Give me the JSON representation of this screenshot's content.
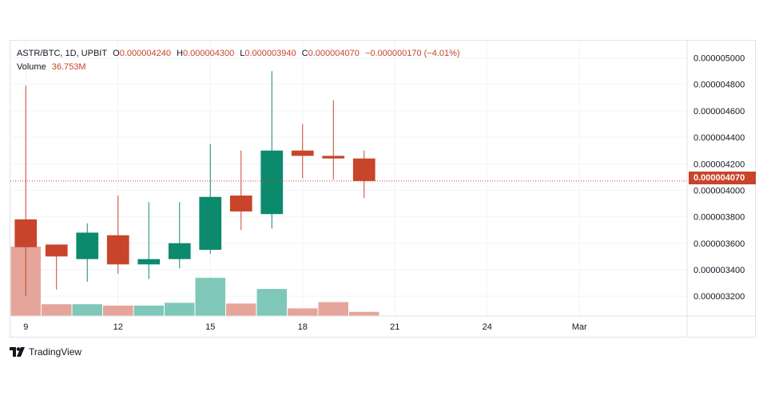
{
  "header": {
    "symbol_line": "ASTR/BTC, 1D, UPBIT",
    "open_key": "O",
    "open_value": "0.000004240",
    "high_key": "H",
    "high_value": "0.000004300",
    "low_key": "L",
    "low_value": "0.000003940",
    "close_key": "C",
    "close_value": "0.000004070",
    "change": "−0.000000170 (−4.01%)",
    "volume_label": "Volume",
    "volume_value": "36.753M"
  },
  "branding": {
    "logo_text": "TradingView",
    "logo_icon": "tradingview-logo-icon"
  },
  "colors": {
    "up": "#26a69a",
    "up_body": "#0c8a6e",
    "down": "#c8442b",
    "up_vol": "#7fc8b9",
    "down_vol": "#e6a59a",
    "grid": "#f0f3fa"
  },
  "chart_data": {
    "type": "candlestick",
    "title": "ASTR/BTC",
    "ylim": [
      3.05e-06,
      5.13e-06
    ],
    "xlim": [
      8.5,
      30.5
    ],
    "y_ticks": [
      {
        "value": 3.2e-06,
        "label": "0.000003200"
      },
      {
        "value": 3.4e-06,
        "label": "0.000003400"
      },
      {
        "value": 3.6e-06,
        "label": "0.000003600"
      },
      {
        "value": 3.8e-06,
        "label": "0.000003800"
      },
      {
        "value": 4e-06,
        "label": "0.000004000"
      },
      {
        "value": 4.2e-06,
        "label": "0.000004200"
      },
      {
        "value": 4.4e-06,
        "label": "0.000004400"
      },
      {
        "value": 4.6e-06,
        "label": "0.000004600"
      },
      {
        "value": 4.8e-06,
        "label": "0.000004800"
      },
      {
        "value": 5e-06,
        "label": "0.000005000"
      }
    ],
    "x_ticks": [
      {
        "value": 9,
        "label": "9"
      },
      {
        "value": 12,
        "label": "12"
      },
      {
        "value": 15,
        "label": "15"
      },
      {
        "value": 18,
        "label": "18"
      },
      {
        "value": 21,
        "label": "21"
      },
      {
        "value": 24,
        "label": "24"
      },
      {
        "value": 27,
        "label": "Mar"
      }
    ],
    "last_price": {
      "value": 4.07e-06,
      "label": "0.000004070"
    },
    "candles": [
      {
        "day": 9,
        "open": 3.78e-06,
        "high": 4.79e-06,
        "low": 3.2e-06,
        "close": 3.57e-06,
        "volume": 100
      },
      {
        "day": 10,
        "open": 3.59e-06,
        "high": 3.59e-06,
        "low": 3.25e-06,
        "close": 3.5e-06,
        "volume": 17
      },
      {
        "day": 11,
        "open": 3.48e-06,
        "high": 3.75e-06,
        "low": 3.31e-06,
        "close": 3.68e-06,
        "volume": 17
      },
      {
        "day": 12,
        "open": 3.66e-06,
        "high": 3.96e-06,
        "low": 3.37e-06,
        "close": 3.44e-06,
        "volume": 15
      },
      {
        "day": 13,
        "open": 3.44e-06,
        "high": 3.91e-06,
        "low": 3.33e-06,
        "close": 3.48e-06,
        "volume": 15
      },
      {
        "day": 14,
        "open": 3.48e-06,
        "high": 3.91e-06,
        "low": 3.41e-06,
        "close": 3.6e-06,
        "volume": 19
      },
      {
        "day": 15,
        "open": 3.55e-06,
        "high": 4.35e-06,
        "low": 3.52e-06,
        "close": 3.95e-06,
        "volume": 55
      },
      {
        "day": 16,
        "open": 3.96e-06,
        "high": 4.3e-06,
        "low": 3.7e-06,
        "close": 3.84e-06,
        "volume": 18
      },
      {
        "day": 17,
        "open": 3.82e-06,
        "high": 4.9e-06,
        "low": 3.71e-06,
        "close": 4.3e-06,
        "volume": 39
      },
      {
        "day": 18,
        "open": 4.3e-06,
        "high": 4.5e-06,
        "low": 4.09e-06,
        "close": 4.26e-06,
        "volume": 11
      },
      {
        "day": 19,
        "open": 4.26e-06,
        "high": 4.68e-06,
        "low": 4.08e-06,
        "close": 4.24e-06,
        "volume": 20
      },
      {
        "day": 20,
        "open": 4.24e-06,
        "high": 4.3e-06,
        "low": 3.94e-06,
        "close": 4.07e-06,
        "volume": 6
      }
    ]
  }
}
